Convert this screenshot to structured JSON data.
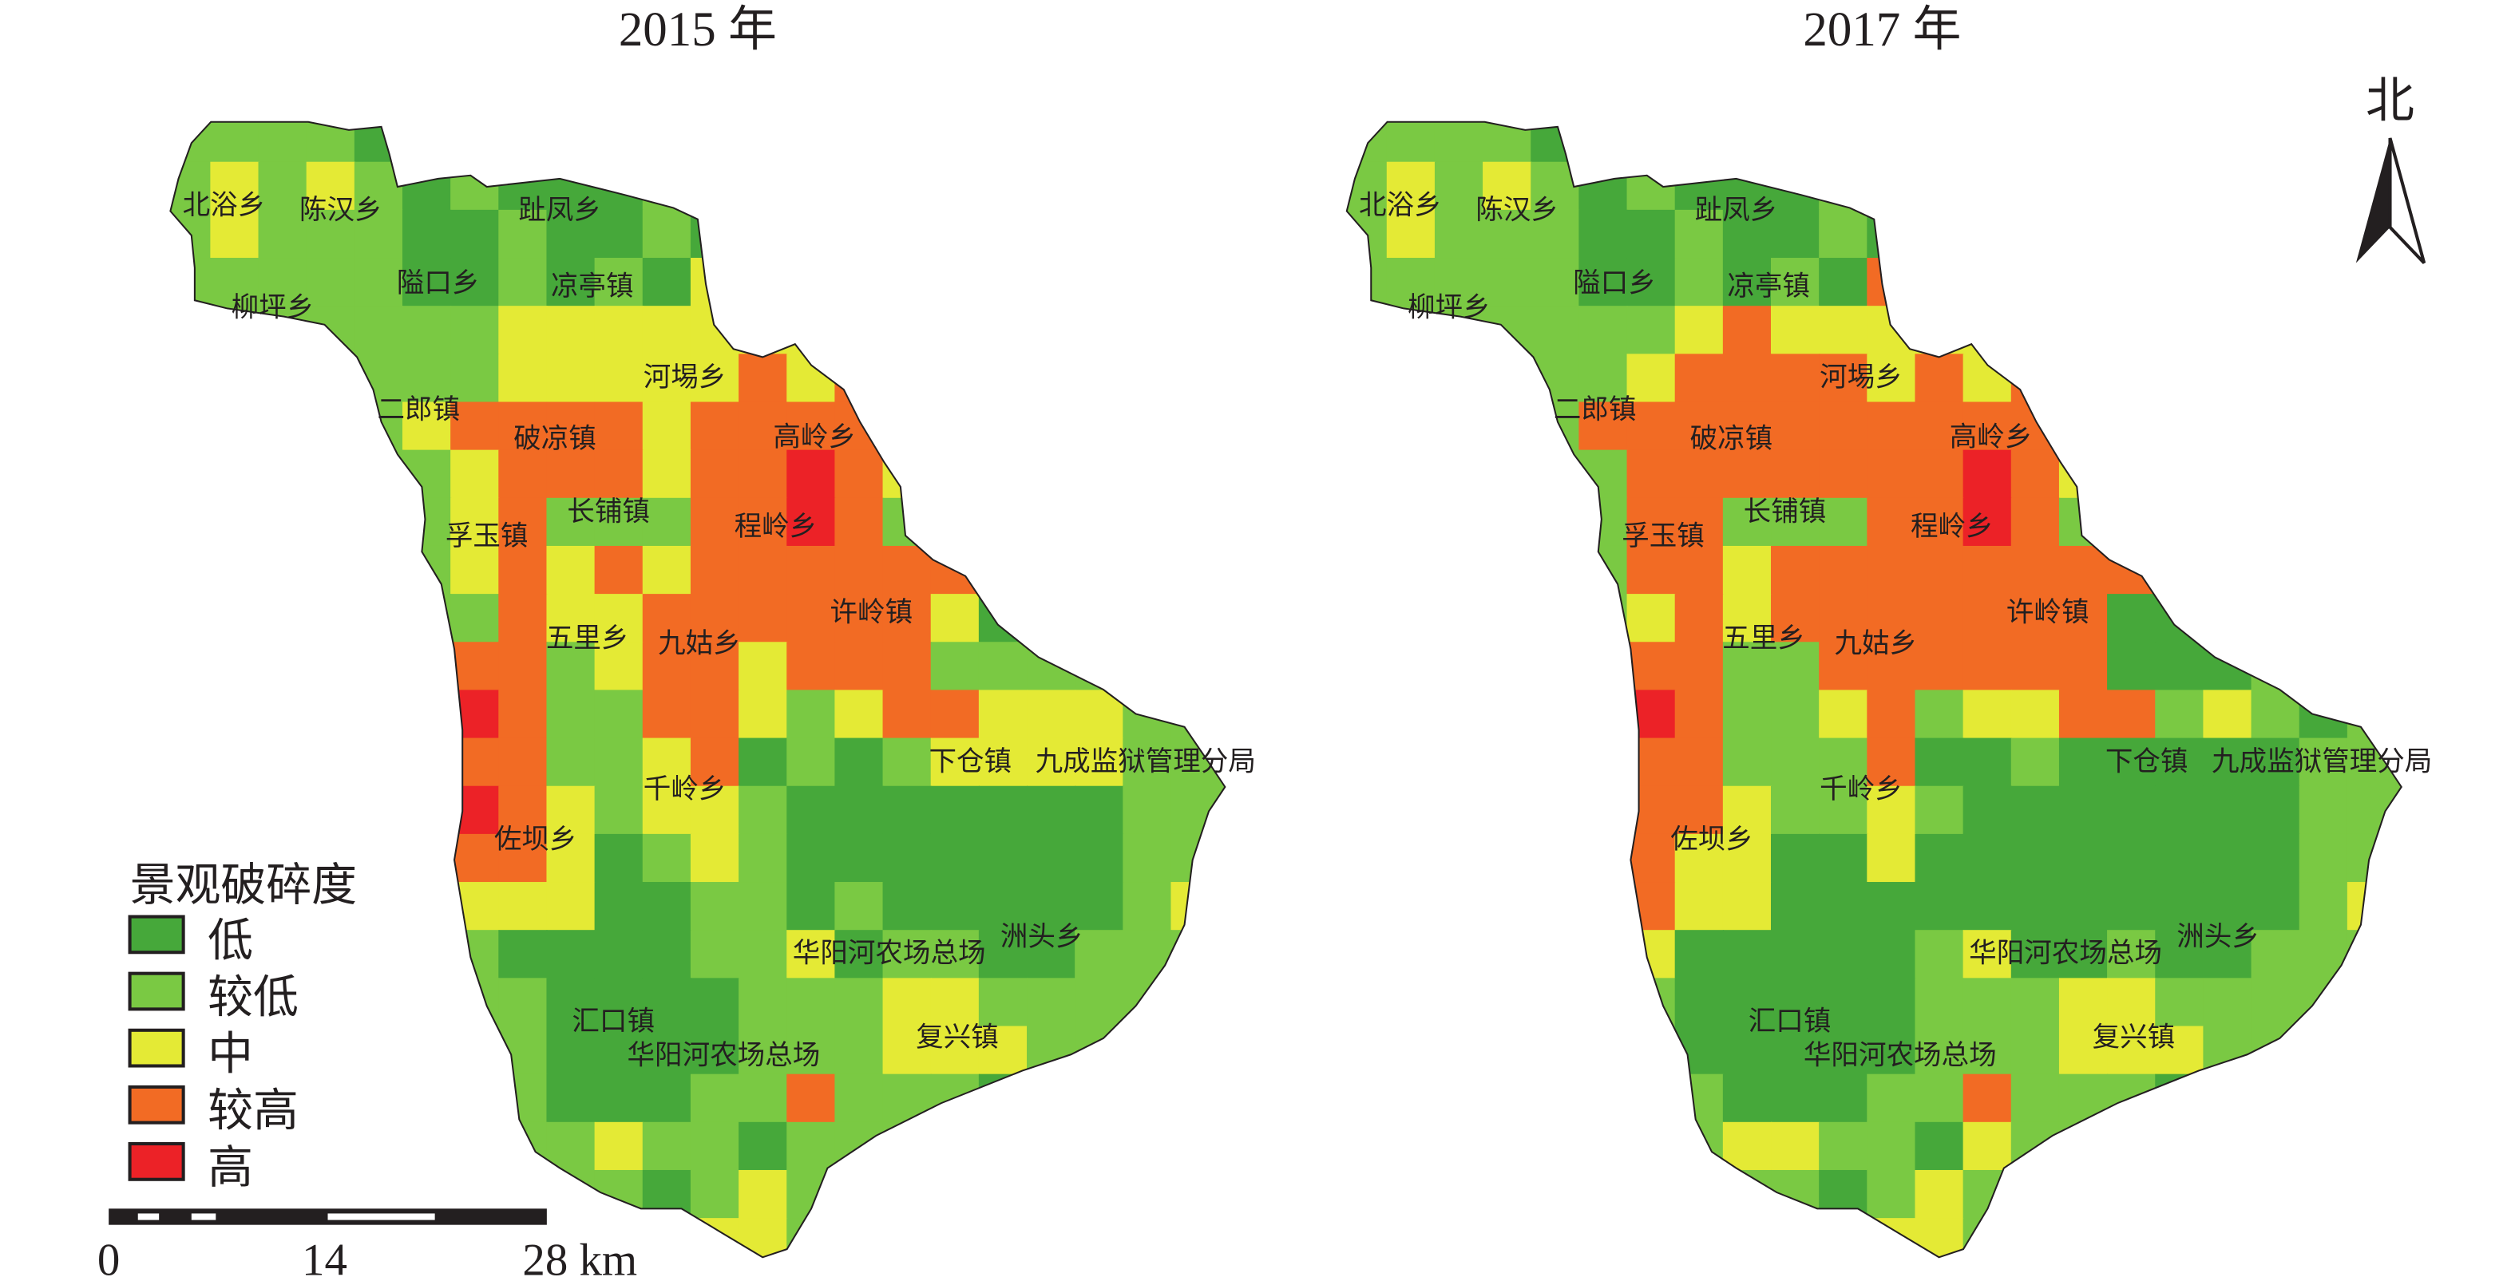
{
  "titles": {
    "left": "2015 年",
    "right": "2017 年"
  },
  "north_label": "北",
  "legend": {
    "title": "景观破碎度",
    "items": [
      {
        "label": "低",
        "color": "#46a83a"
      },
      {
        "label": "较低",
        "color": "#7ac943"
      },
      {
        "label": "中",
        "color": "#e4ea35"
      },
      {
        "label": "较高",
        "color": "#f26b24"
      },
      {
        "label": "高",
        "color": "#ec2227"
      }
    ]
  },
  "scale_bar": {
    "ticks": [
      "0",
      "14",
      "28 km"
    ]
  },
  "place_labels": [
    "北浴乡",
    "陈汉乡",
    "趾凤乡",
    "隘口乡",
    "凉亭镇",
    "柳坪乡",
    "河埸乡",
    "二郎镇",
    "破凉镇",
    "高岭乡",
    "孚玉镇",
    "长铺镇",
    "程岭乡",
    "许岭镇",
    "五里乡",
    "九姑乡",
    "下仓镇",
    "九成监狱管理分局",
    "千岭乡",
    "佐坝乡",
    "洲头乡",
    "华阳河农场总场",
    "汇口镇",
    "华阳河农场总场",
    "复兴镇"
  ],
  "raster_2015": [
    "022212200000000000000000",
    "232321211100000000000000",
    "232221121121223400000000",
    "222221121213333300000000",
    "002222233333333500000000",
    "000022233333434444000000",
    "000023444434444450000000",
    "000000344434454300000000",
    "000000342224454220000000",
    "000000343434444442110000",
    "000000243344444431110000",
    "000000442344344422221100",
    "000000542244323443332224",
    "000000442234121233332222",
    "000000543233211111112225",
    "000000443123211111112230",
    "000000333112212111112300",
    "000000211112231221122200",
    "000000021111222332222000",
    "000000021111222333220000",
    "000000001112242221000000",
    "000000002322122220000000",
    "000000000212321100000000",
    "000000000003321000000000",
    "000000000000300000000000"
  ],
  "raster_2017": [
    "022212200000000000000000",
    "232321211100000000000000",
    "232221121121223400000000",
    "222221121214433300000000",
    "002222234333333500000000",
    "000022344443434444000000",
    "000024444444444450000000",
    "000000444444454300000000",
    "000000442224454220000000",
    "000000443444444441110000",
    "000000343444444411110000",
    "000000442244444411121100",
    "000000542234233442321224",
    "000000442224112111112222",
    "000000443223211111112225",
    "000000433113111111112230",
    "000000433111111111112300",
    "000000311111231121122200",
    "000000011111222332222000",
    "000000011111222333220000",
    "000000001112242221000000",
    "000000003322132220000000",
    "000000000212321100000000",
    "000000000003321000000000",
    "000000000000300000000000"
  ]
}
